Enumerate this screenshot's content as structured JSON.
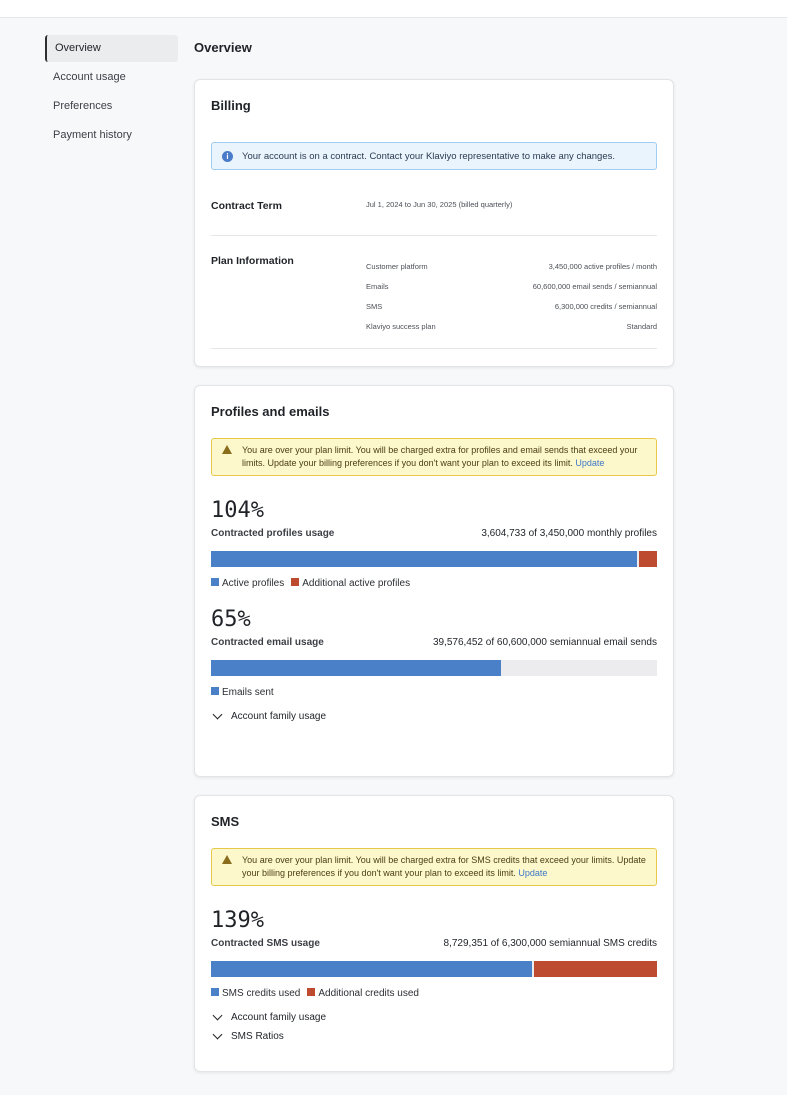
{
  "sidebar": {
    "items": [
      {
        "label": "Overview",
        "active": true
      },
      {
        "label": "Account usage"
      },
      {
        "label": "Preferences"
      },
      {
        "label": "Payment history"
      }
    ]
  },
  "page_title": "Overview",
  "billing": {
    "title": "Billing",
    "info": "Your account is on a contract. Contact your Klaviyo representative to make any changes.",
    "contract_label": "Contract Term",
    "contract_value": "Jul 1, 2024 to Jun 30, 2025 (billed quarterly)",
    "plan_label": "Plan Information",
    "plan": [
      {
        "k": "Customer platform",
        "v": "3,450,000 active profiles / month"
      },
      {
        "k": "Emails",
        "v": "60,600,000 email sends / semiannual"
      },
      {
        "k": "SMS",
        "v": "6,300,000 credits / semiannual"
      },
      {
        "k": "Klaviyo success plan",
        "v": "Standard"
      }
    ]
  },
  "profiles": {
    "title": "Profiles and emails",
    "warning": "You are over your plan limit. You will be charged extra for profiles and email sends that exceed your limits. Update your billing preferences if you don't want your plan to exceed its limit.",
    "warning_link": "Update",
    "profiles_pct": "104%",
    "profiles_label": "Contracted profiles usage",
    "profiles_value": "3,604,733 of 3,450,000 monthly profiles",
    "profiles_fill": {
      "base": 95.7,
      "extra": 4.3
    },
    "legend1": "Active profiles",
    "legend2": "Additional active profiles",
    "email_pct": "65%",
    "email_label": "Contracted email usage",
    "email_value": "39,576,452 of 60,600,000 semiannual email sends",
    "email_fill": 65,
    "legend3": "Emails sent",
    "family": "Account family usage"
  },
  "sms": {
    "title": "SMS",
    "warning": "You are over your plan limit. You will be charged extra for SMS credits that exceed your limits. Update your billing preferences if you don't want your plan to exceed its limit.",
    "warning_link": "Update",
    "pct": "139%",
    "label": "Contracted SMS usage",
    "value": "8,729,351 of 6,300,000 semiannual SMS credits",
    "fill": {
      "base": 72.2,
      "extra": 27.8
    },
    "legend1": "SMS credits used",
    "legend2": "Additional credits used",
    "family": "Account family usage",
    "ratios": "SMS Ratios"
  },
  "colors": {
    "used": "#4a80c8",
    "overage": "#bd4b2f",
    "info_bg": "#e9f4fd",
    "warn_bg": "#fdf7cc"
  }
}
